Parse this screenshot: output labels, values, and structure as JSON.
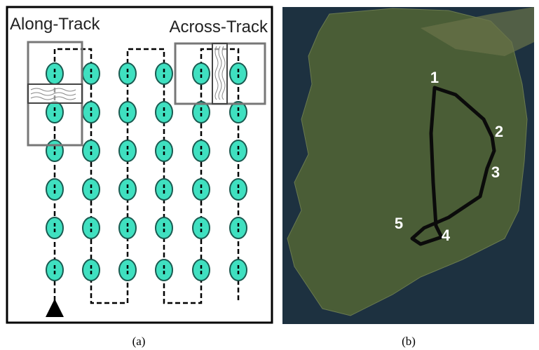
{
  "panel_a": {
    "title_left": "Along-Track",
    "title_right": "Across-Track",
    "caption": "(a)"
  },
  "panel_b": {
    "waypoints": [
      "1",
      "2",
      "3",
      "4",
      "5"
    ],
    "caption": "(b)"
  }
}
